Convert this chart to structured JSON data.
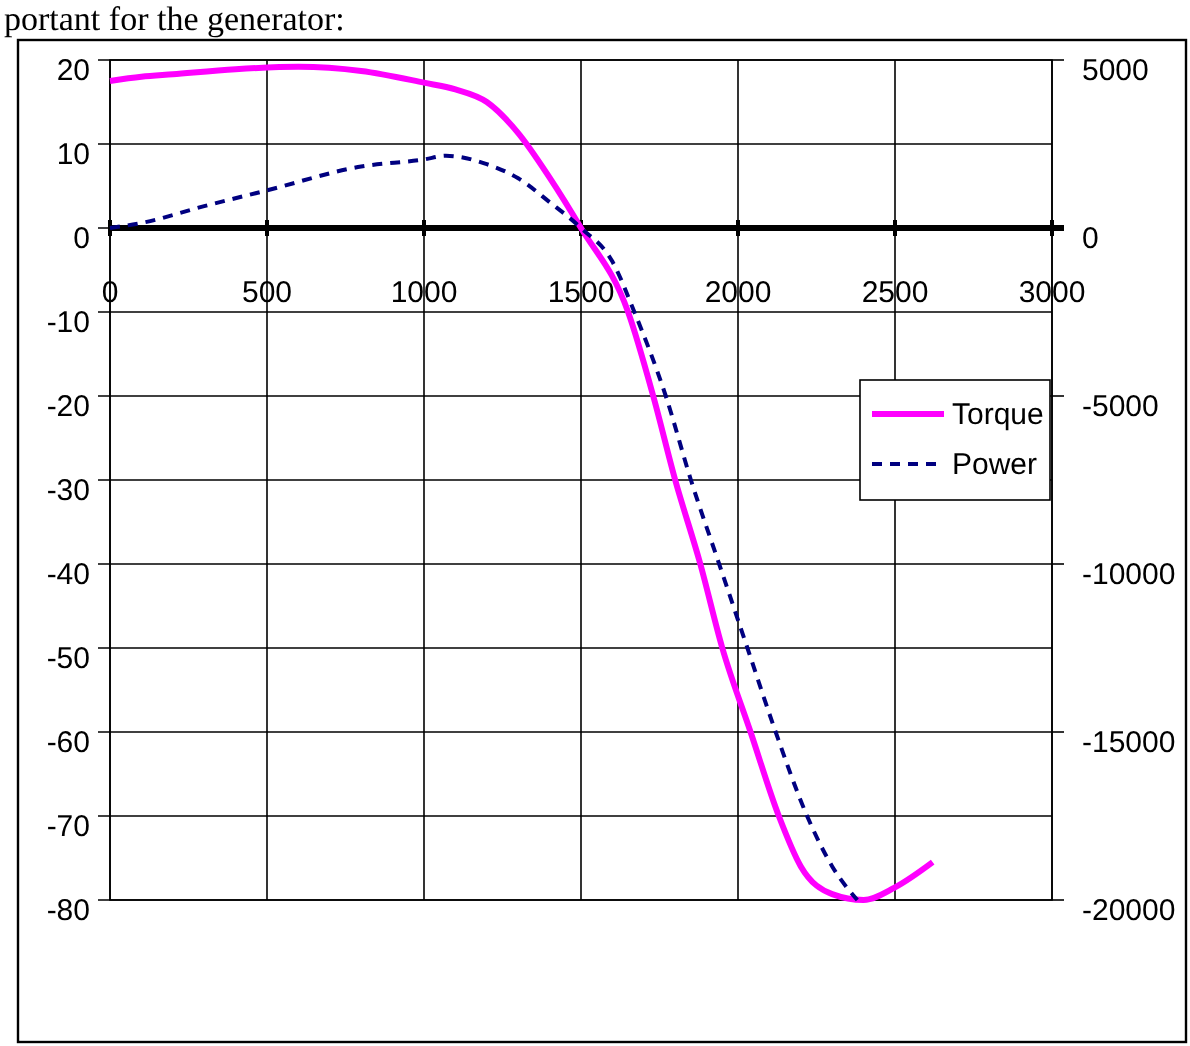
{
  "chart_data": {
    "type": "line",
    "annotations": [
      "portant for the generator:"
    ],
    "xlim": [
      0,
      3000
    ],
    "xticks": [
      0,
      500,
      1000,
      1500,
      2000,
      2500,
      3000
    ],
    "ylim": [
      -80,
      20
    ],
    "yticks": [
      -80,
      -70,
      -60,
      -50,
      -40,
      -30,
      -20,
      -10,
      0,
      10,
      20
    ],
    "y2lim": [
      -20000,
      5000
    ],
    "y2ticks": [
      -20000,
      -15000,
      -10000,
      -5000,
      0,
      5000
    ],
    "grid": true,
    "legend": "right",
    "marker": "none",
    "series": [
      {
        "name": "Torque",
        "color": "#ff00ff",
        "line_style": "solid",
        "x": [
          0,
          100,
          200,
          400,
          600,
          800,
          1000,
          1100,
          1200,
          1300,
          1400,
          1500,
          1650,
          1730,
          1800,
          1880,
          1950,
          2040,
          2130,
          2200,
          2300,
          2400,
          2500,
          2620
        ],
        "values": [
          17.5,
          18,
          18.3,
          18.9,
          19.2,
          18.7,
          17.3,
          16.5,
          15,
          11.3,
          6,
          0,
          -10,
          -20,
          -30,
          -40,
          -50,
          -60,
          -70,
          -76,
          -79.3,
          -80,
          -78.5,
          -75.5
        ]
      },
      {
        "name": "Power",
        "color": "#000080",
        "line_style": "dashed",
        "axis": "y2",
        "x": [
          0,
          100,
          300,
          500,
          800,
          1000,
          1070,
          1200,
          1300,
          1400,
          1500,
          1600,
          1670,
          1770,
          1850,
          1940,
          2030,
          2120,
          2220,
          2300,
          2380
        ],
        "values": [
          0,
          150,
          650,
          1120,
          1830,
          2040,
          2150,
          1900,
          1480,
          770,
          0,
          -1000,
          -2500,
          -5000,
          -7500,
          -10000,
          -12500,
          -15000,
          -17500,
          -19000,
          -20000
        ]
      }
    ]
  }
}
